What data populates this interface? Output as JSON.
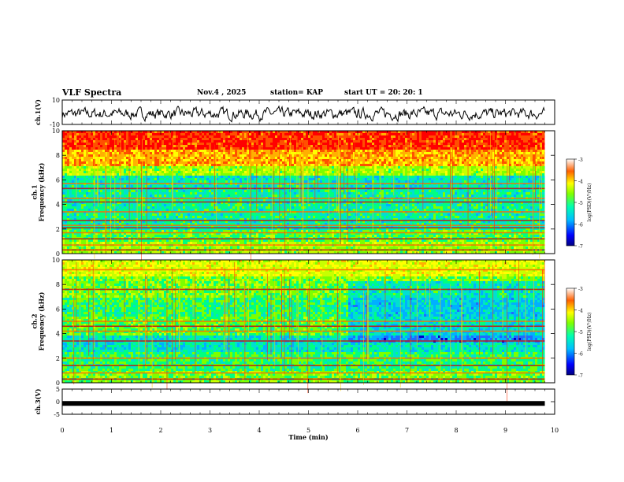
{
  "header": {
    "title": "VLF Spectra",
    "date": "Nov.4 , 2025",
    "station": "station= KAP",
    "start": "start UT = 20: 20: 1"
  },
  "chart_data": [
    {
      "type": "line",
      "ylabel": "ch.1(V)",
      "ylim": [
        -10,
        10
      ],
      "yticks": [
        "10",
        "-10"
      ],
      "xlim": [
        0,
        10
      ],
      "series": [
        {
          "values": []
        }
      ]
    },
    {
      "type": "heatmap",
      "ylabel": "ch.1\nFrequency (kHz)",
      "ylim": [
        0,
        10
      ],
      "yticks": [
        "10",
        "8",
        "6",
        "4",
        "2",
        "0"
      ],
      "xlim": [
        0,
        10
      ],
      "data_end_min": 9.8,
      "colorbar": {
        "label": "log(PSD)(V²/Hz)",
        "range": [
          -7,
          -3
        ],
        "ticks": [
          "-3",
          "-4",
          "-5",
          "-6",
          "-7"
        ]
      },
      "bands_khz": [
        0.3,
        0.7,
        1.2,
        1.7,
        2.1,
        2.3,
        2.7,
        3.4,
        4.2,
        4.5,
        5.3,
        5.7
      ]
    },
    {
      "type": "heatmap",
      "ylabel": "ch.2\nFrequency (kHz)",
      "ylim": [
        0,
        10
      ],
      "yticks": [
        "10",
        "8",
        "6",
        "4",
        "2",
        "0"
      ],
      "xlim": [
        0,
        10
      ],
      "data_end_min": 9.8,
      "change_at_min": 5.8,
      "colorbar": {
        "label": "log(PSD)(V²/Hz)",
        "range": [
          -7,
          -3
        ],
        "ticks": [
          "-3",
          "-4",
          "-5",
          "-6",
          "-7"
        ]
      },
      "bands_khz": [
        0.3,
        0.8,
        1.4,
        2.0,
        3.4,
        4.2,
        4.6,
        5.0,
        7.6,
        9.2
      ]
    },
    {
      "type": "line",
      "ylabel": "ch.3(V)",
      "ylim": [
        -5,
        5
      ],
      "yticks": [
        "5",
        "0",
        "-5"
      ],
      "xlim": [
        0,
        10
      ],
      "xticks": [
        "0",
        "1",
        "2",
        "3",
        "4",
        "5",
        "6",
        "7",
        "8",
        "9",
        "10"
      ],
      "xlabel": "Time (min)",
      "series": [
        {
          "values": [
            -0.7,
            -0.7
          ]
        }
      ]
    }
  ]
}
